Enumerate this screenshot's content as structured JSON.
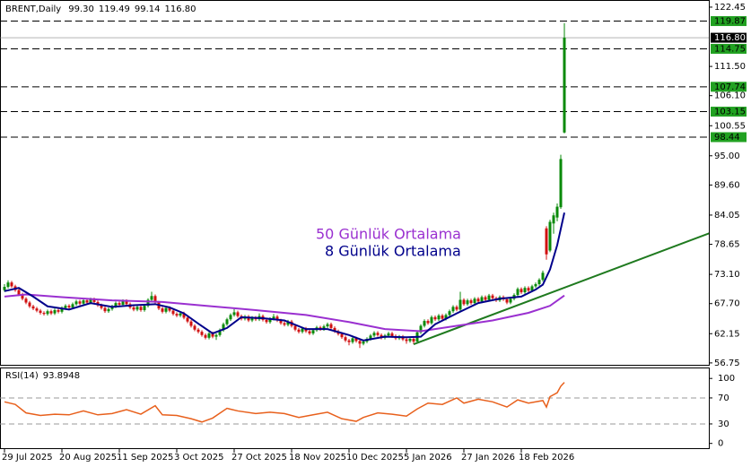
{
  "chart_data": [
    {
      "type": "candlestick",
      "header": {
        "symbol": "BRENT,Daily",
        "ohlc": [
          "99.30",
          "119.49",
          "99.14",
          "116.80"
        ]
      },
      "colors": {
        "up": "#0a8a0a",
        "down": "#d01010"
      },
      "candles": [
        [
          70.2,
          71.3,
          69.9,
          70.8
        ],
        [
          70.8,
          72.0,
          70.5,
          71.6
        ],
        [
          71.6,
          71.9,
          70.6,
          70.9
        ],
        [
          70.9,
          71.2,
          69.9,
          70.2
        ],
        [
          70.2,
          70.5,
          69.1,
          69.4
        ],
        [
          69.4,
          69.7,
          68.3,
          68.6
        ],
        [
          68.6,
          68.9,
          67.6,
          67.9
        ],
        [
          67.9,
          68.2,
          66.9,
          67.2
        ],
        [
          67.2,
          67.5,
          66.5,
          66.8
        ],
        [
          66.8,
          67.1,
          66.1,
          66.4
        ],
        [
          66.4,
          66.7,
          65.7,
          66.0
        ],
        [
          66.0,
          66.3,
          65.5,
          65.8
        ],
        [
          65.8,
          66.6,
          65.5,
          66.3
        ],
        [
          66.3,
          66.6,
          65.6,
          65.9
        ],
        [
          65.9,
          66.8,
          65.6,
          66.5
        ],
        [
          66.5,
          66.8,
          65.9,
          66.2
        ],
        [
          66.2,
          67.2,
          65.9,
          66.9
        ],
        [
          66.9,
          67.6,
          66.6,
          67.3
        ],
        [
          67.3,
          67.6,
          66.7,
          67.0
        ],
        [
          67.0,
          67.9,
          66.7,
          67.6
        ],
        [
          67.6,
          68.4,
          67.3,
          68.1
        ],
        [
          68.1,
          68.4,
          67.4,
          67.7
        ],
        [
          67.7,
          68.6,
          67.4,
          68.3
        ],
        [
          68.3,
          68.6,
          67.6,
          67.9
        ],
        [
          67.9,
          68.8,
          67.6,
          68.5
        ],
        [
          68.5,
          68.8,
          67.7,
          68.0
        ],
        [
          68.0,
          68.3,
          67.1,
          67.4
        ],
        [
          67.4,
          67.7,
          66.6,
          66.9
        ],
        [
          66.9,
          67.2,
          66.0,
          66.3
        ],
        [
          66.3,
          67.0,
          66.0,
          66.7
        ],
        [
          66.7,
          67.5,
          66.4,
          67.2
        ],
        [
          67.2,
          68.1,
          66.9,
          67.8
        ],
        [
          67.8,
          68.1,
          67.2,
          67.5
        ],
        [
          67.5,
          68.5,
          67.2,
          68.2
        ],
        [
          68.2,
          68.5,
          67.3,
          67.6
        ],
        [
          67.6,
          67.9,
          66.7,
          67.0
        ],
        [
          67.0,
          67.3,
          66.3,
          66.6
        ],
        [
          66.6,
          67.4,
          66.3,
          67.1
        ],
        [
          67.1,
          67.4,
          66.2,
          66.5
        ],
        [
          66.5,
          67.6,
          66.2,
          67.3
        ],
        [
          67.3,
          68.7,
          67.0,
          68.4
        ],
        [
          68.4,
          69.9,
          68.1,
          69.1
        ],
        [
          69.1,
          69.4,
          67.6,
          67.9
        ],
        [
          67.9,
          68.2,
          66.5,
          66.8
        ],
        [
          66.8,
          67.1,
          65.9,
          66.2
        ],
        [
          66.2,
          67.2,
          65.9,
          66.9
        ],
        [
          66.9,
          67.2,
          66.1,
          66.4
        ],
        [
          66.4,
          66.7,
          65.5,
          65.8
        ],
        [
          65.8,
          66.1,
          65.2,
          65.5
        ],
        [
          65.5,
          66.2,
          65.2,
          65.9
        ],
        [
          65.9,
          66.2,
          64.8,
          65.1
        ],
        [
          65.1,
          65.4,
          64.1,
          64.4
        ],
        [
          64.4,
          64.7,
          63.3,
          63.6
        ],
        [
          63.6,
          63.9,
          62.6,
          62.9
        ],
        [
          62.9,
          63.2,
          62.2,
          62.5
        ],
        [
          62.5,
          62.8,
          61.6,
          61.9
        ],
        [
          61.9,
          62.2,
          61.1,
          61.4
        ],
        [
          61.4,
          62.5,
          61.1,
          62.2
        ],
        [
          62.2,
          62.5,
          61.3,
          61.6
        ],
        [
          61.6,
          62.2,
          61.0,
          61.9
        ],
        [
          61.9,
          63.1,
          61.6,
          62.8
        ],
        [
          62.8,
          64.2,
          62.5,
          63.9
        ],
        [
          63.9,
          65.1,
          63.6,
          64.8
        ],
        [
          64.8,
          65.9,
          64.5,
          65.6
        ],
        [
          65.6,
          66.7,
          65.3,
          66.1
        ],
        [
          66.1,
          66.4,
          65.1,
          65.4
        ],
        [
          65.4,
          65.7,
          64.6,
          64.9
        ],
        [
          64.9,
          65.6,
          64.6,
          65.3
        ],
        [
          65.3,
          65.6,
          64.3,
          64.6
        ],
        [
          64.6,
          65.4,
          64.3,
          65.1
        ],
        [
          65.1,
          65.4,
          64.5,
          64.8
        ],
        [
          64.8,
          65.9,
          64.5,
          65.4
        ],
        [
          65.4,
          65.7,
          64.4,
          64.7
        ],
        [
          64.7,
          65.0,
          64.0,
          64.3
        ],
        [
          64.3,
          65.2,
          64.0,
          64.9
        ],
        [
          64.9,
          65.8,
          64.6,
          65.3
        ],
        [
          65.3,
          65.6,
          64.3,
          64.6
        ],
        [
          64.6,
          64.9,
          63.8,
          64.1
        ],
        [
          64.1,
          64.4,
          63.5,
          63.8
        ],
        [
          63.8,
          64.7,
          63.5,
          64.4
        ],
        [
          64.4,
          64.7,
          63.3,
          63.6
        ],
        [
          63.6,
          63.9,
          62.6,
          62.9
        ],
        [
          62.9,
          63.2,
          62.2,
          62.5
        ],
        [
          62.5,
          63.4,
          62.2,
          63.1
        ],
        [
          63.1,
          63.4,
          62.3,
          62.6
        ],
        [
          62.6,
          62.9,
          61.9,
          62.2
        ],
        [
          62.2,
          63.1,
          61.9,
          62.8
        ],
        [
          62.8,
          63.6,
          62.5,
          63.3
        ],
        [
          63.3,
          63.6,
          62.7,
          63.0
        ],
        [
          63.0,
          63.8,
          62.7,
          63.5
        ],
        [
          63.5,
          64.2,
          63.2,
          63.9
        ],
        [
          63.9,
          64.2,
          62.9,
          63.2
        ],
        [
          63.2,
          63.5,
          62.3,
          62.6
        ],
        [
          62.6,
          62.9,
          61.8,
          62.1
        ],
        [
          62.1,
          62.4,
          61.2,
          61.5
        ],
        [
          61.5,
          61.8,
          60.6,
          60.9
        ],
        [
          60.9,
          61.2,
          60.0,
          60.6
        ],
        [
          60.6,
          61.6,
          60.3,
          61.3
        ],
        [
          61.3,
          61.6,
          60.5,
          60.8
        ],
        [
          60.8,
          61.1,
          59.5,
          60.3
        ],
        [
          60.3,
          61.0,
          60.0,
          60.7
        ],
        [
          60.7,
          61.5,
          60.4,
          61.2
        ],
        [
          61.2,
          62.1,
          60.9,
          61.8
        ],
        [
          61.8,
          62.6,
          61.5,
          62.3
        ],
        [
          62.3,
          62.6,
          61.6,
          61.9
        ],
        [
          61.9,
          62.2,
          61.1,
          61.4
        ],
        [
          61.4,
          62.1,
          61.1,
          61.8
        ],
        [
          61.8,
          62.5,
          61.5,
          62.2
        ],
        [
          62.2,
          62.5,
          61.4,
          61.7
        ],
        [
          61.7,
          62.0,
          61.0,
          61.3
        ],
        [
          61.3,
          61.9,
          61.0,
          61.6
        ],
        [
          61.6,
          61.9,
          60.8,
          61.1
        ],
        [
          61.1,
          61.4,
          60.3,
          60.8
        ],
        [
          60.8,
          61.5,
          60.5,
          61.2
        ],
        [
          61.2,
          61.5,
          60.2,
          60.7
        ],
        [
          60.7,
          62.7,
          60.4,
          62.4
        ],
        [
          62.4,
          63.9,
          62.1,
          63.6
        ],
        [
          63.6,
          64.8,
          63.3,
          64.5
        ],
        [
          64.5,
          64.8,
          63.8,
          64.1
        ],
        [
          64.1,
          65.5,
          63.8,
          65.2
        ],
        [
          65.2,
          65.5,
          64.5,
          64.8
        ],
        [
          64.8,
          65.8,
          64.5,
          65.5
        ],
        [
          65.5,
          65.8,
          64.6,
          64.9
        ],
        [
          64.9,
          65.9,
          64.6,
          65.6
        ],
        [
          65.6,
          66.6,
          65.3,
          66.3
        ],
        [
          66.3,
          67.4,
          66.0,
          67.1
        ],
        [
          67.1,
          67.4,
          66.3,
          66.6
        ],
        [
          66.6,
          69.9,
          66.3,
          68.4
        ],
        [
          68.4,
          68.7,
          67.3,
          67.6
        ],
        [
          67.6,
          68.6,
          67.3,
          68.3
        ],
        [
          68.3,
          68.6,
          67.5,
          67.8
        ],
        [
          67.8,
          68.9,
          67.5,
          68.6
        ],
        [
          68.6,
          68.9,
          67.8,
          68.1
        ],
        [
          68.1,
          69.2,
          67.8,
          68.9
        ],
        [
          68.9,
          69.2,
          68.1,
          68.4
        ],
        [
          68.4,
          69.5,
          68.1,
          69.2
        ],
        [
          69.2,
          69.5,
          68.4,
          68.7
        ],
        [
          68.7,
          69.0,
          68.0,
          68.3
        ],
        [
          68.3,
          69.2,
          68.0,
          68.9
        ],
        [
          68.9,
          69.2,
          68.2,
          68.5
        ],
        [
          68.5,
          68.8,
          67.6,
          67.9
        ],
        [
          67.9,
          68.9,
          67.6,
          68.6
        ],
        [
          68.6,
          69.6,
          68.3,
          69.3
        ],
        [
          69.3,
          70.7,
          69.0,
          70.4
        ],
        [
          70.4,
          70.7,
          69.5,
          69.8
        ],
        [
          69.8,
          70.9,
          69.5,
          70.6
        ],
        [
          70.6,
          70.9,
          69.8,
          70.1
        ],
        [
          70.1,
          71.2,
          69.8,
          70.9
        ],
        [
          70.9,
          71.6,
          70.6,
          71.3
        ],
        [
          71.3,
          72.4,
          71.0,
          72.1
        ],
        [
          72.1,
          73.8,
          71.8,
          73.4
        ],
        [
          81.6,
          82.0,
          75.8,
          76.8
        ],
        [
          77.5,
          83.2,
          77.2,
          82.8
        ],
        [
          82.5,
          84.5,
          80.6,
          84.0
        ],
        [
          83.6,
          86.2,
          82.9,
          85.6
        ],
        [
          85.5,
          95.2,
          85.2,
          94.4
        ],
        [
          99.3,
          119.49,
          99.14,
          116.8
        ]
      ],
      "ylim": [
        56.4,
        123.6
      ],
      "yticks": [
        122.45,
        {
          "value": 111.5,
          "label": "111.50"
        },
        {
          "value": 106.1,
          "label": "106.10"
        },
        100.55,
        {
          "value": 95,
          "label": "95.00"
        },
        {
          "value": 89.6,
          "label": "89.60"
        },
        84.05,
        78.65,
        {
          "value": 73.1,
          "label": "73.10"
        },
        {
          "value": 67.7,
          "label": "67.70"
        },
        62.15,
        56.75
      ],
      "xticks": [
        {
          "value": 0,
          "label": "29 Jul 2025"
        },
        {
          "value": 16,
          "label": "20 Aug 2025"
        },
        {
          "value": 32,
          "label": "11 Sep 2025"
        },
        {
          "value": 48,
          "label": "3 Oct 2025"
        },
        {
          "value": 64,
          "label": "27 Oct 2025"
        },
        {
          "value": 80,
          "label": "18 Nov 2025"
        },
        {
          "value": 96,
          "label": "10 Dec 2025"
        },
        {
          "value": 112,
          "label": "5 Jan 2026"
        },
        {
          "value": 128,
          "label": "27 Jan 2026"
        },
        {
          "value": 144,
          "label": "18 Feb 2026"
        }
      ],
      "levels": {
        "color": "#21a121",
        "values": [
          119.87,
          114.75,
          107.74,
          103.15,
          98.44
        ]
      },
      "last_price": {
        "value": 116.8,
        "label": "116.80"
      },
      "trendline": {
        "color": "#1f7a1f",
        "x": [
          114,
          198
        ],
        "values": [
          60.2,
          81.1
        ]
      },
      "series": [
        {
          "name": "50 Günlük Ortalama",
          "color": "#9a30d0",
          "x": [
            0,
            6,
            16,
            30,
            44,
            56,
            70,
            84,
            96,
            106,
            116,
            126,
            136,
            146,
            152,
            156
          ],
          "values": [
            69.0,
            69.4,
            68.9,
            68.3,
            68.0,
            67.3,
            66.5,
            65.6,
            64.3,
            63.0,
            62.6,
            63.6,
            64.6,
            66.0,
            67.3,
            69.2
          ]
        },
        {
          "name": "8 Günlük Ortalama",
          "color": "#00008b",
          "x": [
            0,
            4,
            8,
            12,
            18,
            24,
            30,
            36,
            42,
            46,
            50,
            54,
            58,
            62,
            66,
            72,
            78,
            84,
            90,
            96,
            100,
            106,
            112,
            116,
            120,
            126,
            132,
            138,
            144,
            148,
            150,
            152,
            154,
            156
          ],
          "values": [
            70.0,
            70.6,
            69.0,
            67.2,
            66.6,
            67.8,
            67.1,
            67.4,
            67.6,
            67.0,
            65.9,
            64.0,
            62.2,
            63.2,
            65.2,
            65.0,
            64.6,
            63.0,
            63.0,
            61.9,
            60.9,
            61.6,
            61.5,
            61.6,
            63.9,
            65.9,
            67.8,
            68.6,
            69.0,
            70.3,
            71.2,
            74.0,
            78.5,
            84.5
          ]
        }
      ]
    },
    {
      "type": "line",
      "title": "RSI(14)",
      "last_value": 93.8948,
      "ylim": [
        0,
        100
      ],
      "yticks": [
        0,
        30,
        70,
        100
      ],
      "levels": [
        30,
        70
      ],
      "series": [
        {
          "color": "#e8601c",
          "x": [
            0,
            3,
            6,
            10,
            14,
            18,
            22,
            26,
            30,
            34,
            38,
            42,
            44,
            48,
            52,
            55,
            58,
            62,
            65,
            70,
            74,
            78,
            82,
            86,
            90,
            94,
            98,
            100,
            104,
            108,
            112,
            115,
            118,
            122,
            126,
            128,
            132,
            136,
            140,
            143,
            146,
            150,
            151,
            152,
            154,
            155,
            156
          ],
          "values": [
            64,
            60,
            47,
            43,
            45,
            44,
            50,
            44,
            46,
            52,
            45,
            58,
            44,
            43,
            38,
            33,
            39,
            54,
            50,
            46,
            48,
            46,
            40,
            44,
            48,
            38,
            34,
            40,
            47,
            45,
            42,
            53,
            62,
            60,
            70,
            62,
            68,
            64,
            56,
            67,
            62,
            66,
            56,
            72,
            78,
            88,
            93.8948
          ]
        }
      ]
    }
  ]
}
